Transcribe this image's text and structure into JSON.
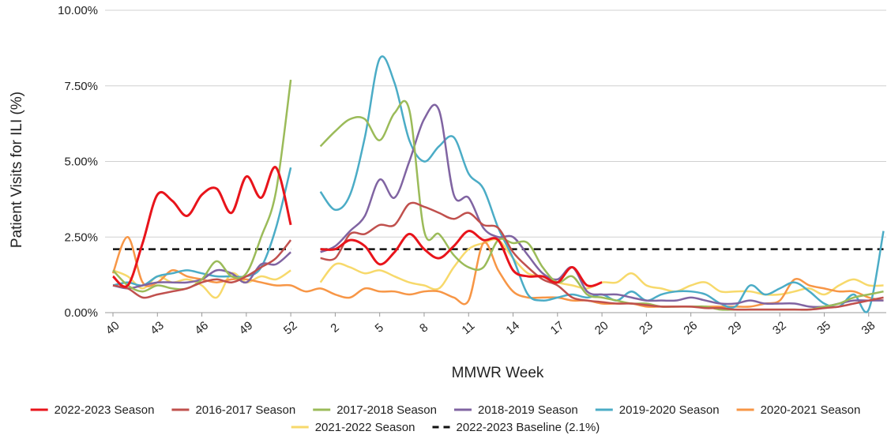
{
  "chart_data": {
    "type": "line",
    "x_label": "MMWR Week",
    "y_label": "Patient Visits for ILI (%)",
    "categories": [
      "40",
      null,
      null,
      "43",
      null,
      null,
      "46",
      null,
      null,
      "49",
      null,
      null,
      "52",
      null,
      null,
      "2",
      null,
      null,
      "5",
      null,
      null,
      "8",
      null,
      null,
      "11",
      null,
      null,
      "14",
      null,
      null,
      "17",
      null,
      null,
      "20",
      null,
      null,
      "23",
      null,
      null,
      "26",
      null,
      null,
      "29",
      null,
      null,
      "32",
      null,
      null,
      "35",
      null,
      null,
      "38",
      null
    ],
    "ylim": [
      0,
      10
    ],
    "yticks": [
      {
        "value": 0,
        "label": "0.00%"
      },
      {
        "value": 2.5,
        "label": "2.50%"
      },
      {
        "value": 5,
        "label": "5.00%"
      },
      {
        "value": 7.5,
        "label": "7.50%"
      },
      {
        "value": 10,
        "label": "10.00%"
      }
    ],
    "grid": true,
    "legend": "bottom",
    "series": [
      {
        "name": "2022-2023 Season",
        "color": "#e8141b",
        "width": 3,
        "values": [
          1.2,
          0.9,
          2.3,
          3.9,
          3.7,
          3.2,
          3.9,
          4.1,
          3.3,
          4.5,
          3.8,
          4.8,
          2.9,
          null,
          2.1,
          2.1,
          2.4,
          2.2,
          1.6,
          2.0,
          2.6,
          2.1,
          1.8,
          2.2,
          2.7,
          2.4,
          2.4,
          1.4,
          1.2,
          1.2,
          1.0,
          1.5,
          0.9,
          1.0,
          null,
          null,
          null,
          null,
          null,
          null,
          null,
          null,
          null,
          null,
          null,
          null,
          null,
          null,
          null,
          null,
          null,
          null,
          null
        ]
      },
      {
        "name": "2016-2017 Season",
        "color": "#c0504d",
        "width": 2.5,
        "values": [
          0.9,
          0.8,
          0.5,
          0.6,
          0.7,
          0.8,
          1.0,
          1.1,
          1.0,
          1.2,
          1.5,
          1.8,
          2.4,
          null,
          1.8,
          1.8,
          2.6,
          2.6,
          2.9,
          2.9,
          3.6,
          3.5,
          3.3,
          3.1,
          3.3,
          2.9,
          2.8,
          2.0,
          1.5,
          1.1,
          0.9,
          0.5,
          0.4,
          0.35,
          0.3,
          0.3,
          0.25,
          0.2,
          0.2,
          0.2,
          0.15,
          0.15,
          0.1,
          0.1,
          0.1,
          0.1,
          0.1,
          0.1,
          0.15,
          0.2,
          0.3,
          0.4,
          0.5
        ]
      },
      {
        "name": "2017-2018 Season",
        "color": "#9bbb59",
        "width": 2.5,
        "values": [
          1.4,
          0.9,
          0.7,
          0.9,
          0.8,
          0.8,
          1.1,
          1.7,
          1.2,
          1.3,
          2.5,
          4.0,
          7.7,
          null,
          5.5,
          6.0,
          6.4,
          6.4,
          5.7,
          6.6,
          6.7,
          2.7,
          2.6,
          1.9,
          1.5,
          1.5,
          2.4,
          2.3,
          2.3,
          1.5,
          1.0,
          1.2,
          0.6,
          0.5,
          0.4,
          0.3,
          0.3,
          0.2,
          0.2,
          0.2,
          0.2,
          0.1,
          0.1,
          0.1,
          0.1,
          0.1,
          0.1,
          0.1,
          0.2,
          0.3,
          0.5,
          0.6,
          0.7
        ]
      },
      {
        "name": "2018-2019 Season",
        "color": "#8064a2",
        "width": 2.5,
        "values": [
          0.9,
          0.8,
          0.9,
          1.0,
          1.0,
          1.0,
          1.1,
          1.4,
          1.3,
          1.0,
          1.6,
          1.6,
          2.0,
          null,
          2.0,
          2.2,
          2.7,
          3.2,
          4.4,
          3.8,
          5.0,
          6.4,
          6.7,
          3.9,
          3.8,
          2.8,
          2.5,
          2.5,
          1.9,
          1.3,
          1.1,
          1.5,
          0.7,
          0.6,
          0.6,
          0.5,
          0.4,
          0.4,
          0.4,
          0.5,
          0.4,
          0.3,
          0.3,
          0.4,
          0.3,
          0.3,
          0.3,
          0.2,
          0.2,
          0.3,
          0.4,
          0.4,
          0.4
        ]
      },
      {
        "name": "2019-2020 Season",
        "color": "#4bacc6",
        "width": 2.5,
        "values": [
          0.9,
          1.0,
          0.9,
          1.2,
          1.3,
          1.4,
          1.3,
          1.2,
          1.2,
          1.2,
          1.5,
          2.8,
          4.8,
          null,
          4.0,
          3.4,
          3.9,
          5.8,
          8.4,
          7.6,
          5.7,
          5.0,
          5.5,
          5.8,
          4.6,
          4.1,
          2.8,
          1.8,
          0.6,
          0.4,
          0.5,
          0.6,
          0.5,
          0.6,
          0.4,
          0.7,
          0.4,
          0.6,
          0.7,
          0.7,
          0.6,
          0.3,
          0.2,
          0.9,
          0.6,
          0.8,
          1.0,
          0.7,
          0.3,
          0.2,
          0.6,
          0.1,
          2.7
        ]
      },
      {
        "name": "2020-2021 Season",
        "color": "#f79646",
        "width": 2.5,
        "values": [
          1.3,
          2.5,
          1.0,
          1.0,
          1.4,
          1.2,
          1.1,
          1.0,
          1.1,
          1.1,
          1.0,
          0.9,
          0.9,
          0.7,
          0.8,
          0.6,
          0.5,
          0.8,
          0.7,
          0.7,
          0.6,
          0.7,
          0.7,
          0.5,
          0.4,
          2.3,
          1.4,
          0.7,
          0.5,
          0.5,
          0.5,
          0.4,
          0.4,
          0.3,
          0.3,
          0.3,
          0.2,
          0.2,
          0.2,
          0.2,
          0.2,
          0.2,
          0.2,
          0.2,
          0.3,
          0.4,
          1.1,
          0.9,
          0.8,
          0.7,
          0.7,
          0.5,
          0.4
        ]
      },
      {
        "name": "2021-2022 Season",
        "color": "#f7d96b",
        "width": 2.5,
        "values": [
          1.4,
          1.2,
          0.8,
          1.2,
          1.0,
          1.1,
          0.9,
          0.5,
          1.3,
          1.0,
          1.2,
          1.1,
          1.4,
          null,
          1.0,
          1.6,
          1.5,
          1.3,
          1.4,
          1.2,
          1.0,
          0.9,
          0.8,
          1.5,
          2.1,
          2.3,
          2.4,
          1.8,
          1.3,
          1.2,
          1.0,
          0.9,
          0.8,
          1.0,
          1.0,
          1.3,
          0.9,
          0.8,
          0.7,
          0.9,
          1.0,
          0.7,
          0.7,
          0.7,
          0.6,
          0.6,
          0.7,
          0.8,
          0.6,
          0.9,
          1.1,
          0.9,
          0.9
        ]
      },
      {
        "name": "2022-2023 Baseline (2.1%)",
        "color": "#111111",
        "width": 2.5,
        "dashed": true,
        "values": [
          2.1,
          2.1,
          2.1,
          2.1,
          2.1,
          2.1,
          2.1,
          2.1,
          2.1,
          2.1,
          2.1,
          2.1,
          2.1,
          null,
          2.1,
          2.1,
          2.1,
          2.1,
          2.1,
          2.1,
          2.1,
          2.1,
          2.1,
          2.1,
          2.1,
          2.1,
          2.1,
          2.1,
          2.1,
          2.1,
          2.1,
          2.1,
          2.1,
          2.1,
          2.1,
          2.1,
          2.1,
          2.1,
          2.1,
          2.1,
          2.1,
          2.1,
          2.1,
          2.1,
          2.1,
          2.1,
          2.1,
          2.1,
          2.1,
          2.1,
          2.1,
          2.1,
          2.1
        ]
      }
    ]
  }
}
